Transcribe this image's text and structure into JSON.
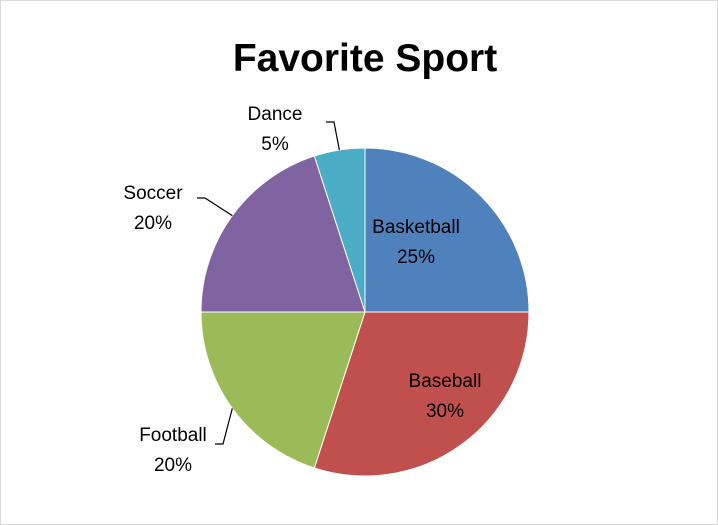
{
  "chart_data": {
    "type": "pie",
    "title": "Favorite Sport",
    "categories": [
      "Basketball",
      "Baseball",
      "Football",
      "Soccer",
      "Dance"
    ],
    "values": [
      25,
      30,
      20,
      20,
      5
    ],
    "percent_labels": [
      "25%",
      "30%",
      "20%",
      "20%",
      "5%"
    ],
    "colors": [
      "#4F81BD",
      "#C0504D",
      "#9BBB59",
      "#8064A2",
      "#4BACC6"
    ],
    "start_angle": "12 o'clock",
    "direction": "clockwise",
    "legend": "none",
    "data_labels": "category name and percent"
  }
}
